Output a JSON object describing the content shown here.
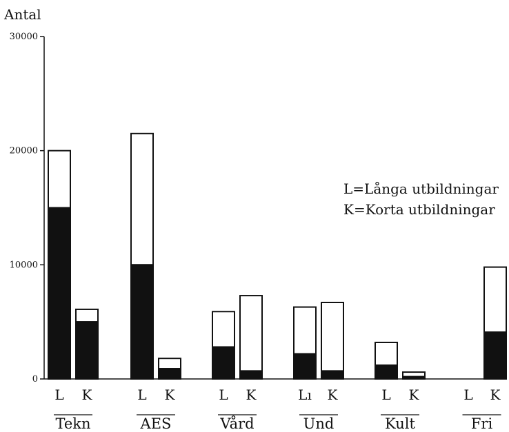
{
  "chart_data": {
    "type": "bar",
    "stacked": true,
    "ylabel": "Antal",
    "ylim": [
      0,
      30000
    ],
    "yticks": [
      0,
      10000,
      20000,
      30000
    ],
    "ytick_labels": [
      "0",
      "10000",
      "20000",
      "30000"
    ],
    "grid": false,
    "legend_placement": "right",
    "legend": [
      "L=Långa utbildningar",
      "K=Korta utbildningar"
    ],
    "groups": [
      "Tekn",
      "AES",
      "Vård",
      "Und",
      "Kult",
      "Fri"
    ],
    "bars": [
      {
        "group": "Tekn",
        "label": "L",
        "dark": 15000,
        "total": 20000
      },
      {
        "group": "Tekn",
        "label": "K",
        "dark": 5000,
        "total": 6100
      },
      {
        "group": "AES",
        "label": "L",
        "dark": 10000,
        "total": 21500
      },
      {
        "group": "AES",
        "label": "K",
        "dark": 900,
        "total": 1800
      },
      {
        "group": "Vård",
        "label": "L",
        "dark": 2800,
        "total": 5900
      },
      {
        "group": "Vård",
        "label": "K",
        "dark": 700,
        "total": 7300
      },
      {
        "group": "Und",
        "label": "Lı",
        "dark": 2200,
        "total": 6300
      },
      {
        "group": "Und",
        "label": "K",
        "dark": 700,
        "total": 6700
      },
      {
        "group": "Kult",
        "label": "L",
        "dark": 1200,
        "total": 3200
      },
      {
        "group": "Kult",
        "label": "K",
        "dark": 200,
        "total": 600
      },
      {
        "group": "Fri",
        "label": "L",
        "dark": 0,
        "total": 0
      },
      {
        "group": "Fri",
        "label": "K",
        "dark": 4100,
        "total": 9800
      }
    ],
    "colors": {
      "dark": "#111111",
      "light": "#ffffff",
      "stroke": "#111111"
    }
  }
}
